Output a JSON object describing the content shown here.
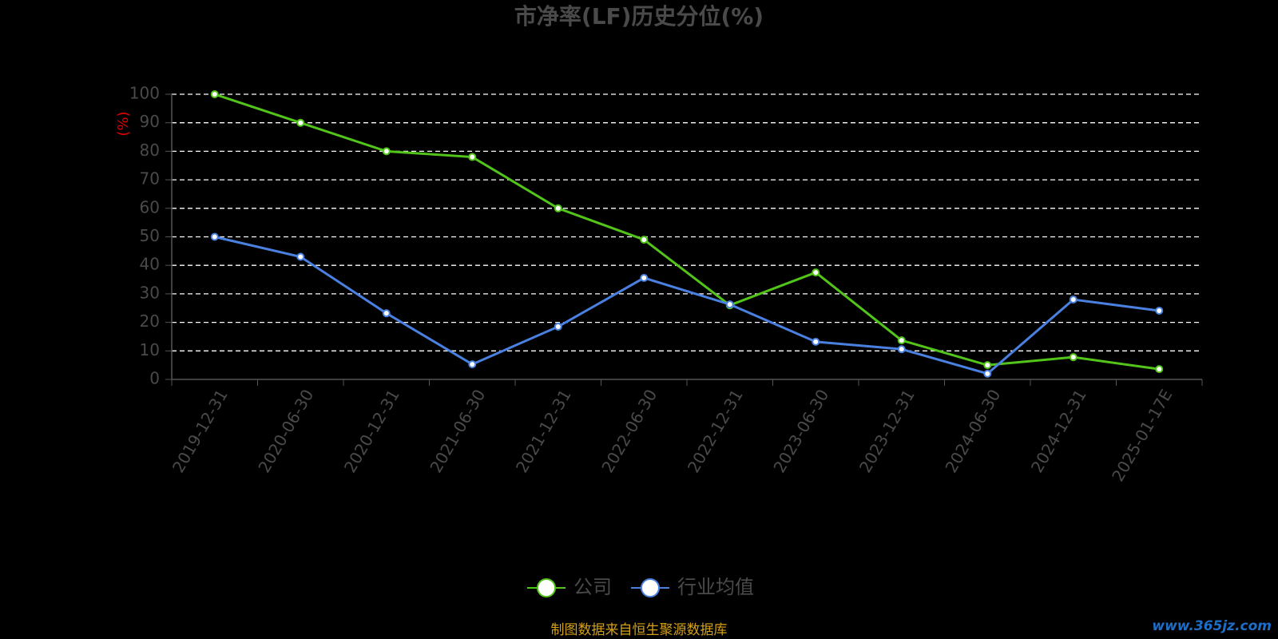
{
  "chart_data": {
    "type": "line",
    "title": "市净率(LF)历史分位(%)",
    "y_label": "(%)",
    "categories": [
      "2019-12-31",
      "2020-06-30",
      "2020-12-31",
      "2021-06-30",
      "2021-12-31",
      "2022-06-30",
      "2022-12-31",
      "2023-06-30",
      "2023-12-31",
      "2024-06-30",
      "2024-12-31",
      "2025-01-17E"
    ],
    "series": [
      {
        "name": "公司",
        "color": "#52c41a",
        "values": [
          100,
          90,
          80,
          78,
          60,
          49,
          26,
          37.5,
          13.7,
          5,
          7.8,
          3.6
        ]
      },
      {
        "name": "行业均值",
        "color": "#4a80e0",
        "values": [
          50,
          43,
          23.2,
          5.3,
          18.5,
          35.6,
          26.3,
          13.2,
          10.6,
          2,
          28,
          24.1
        ]
      }
    ],
    "ylim": [
      0,
      100
    ],
    "yticks": [
      0,
      10,
      20,
      30,
      40,
      50,
      60,
      70,
      80,
      90,
      100
    ],
    "grid": true,
    "legend": "bottom",
    "source": "制图数据来自恒生聚源数据库",
    "watermark": "www.365jz.com"
  }
}
